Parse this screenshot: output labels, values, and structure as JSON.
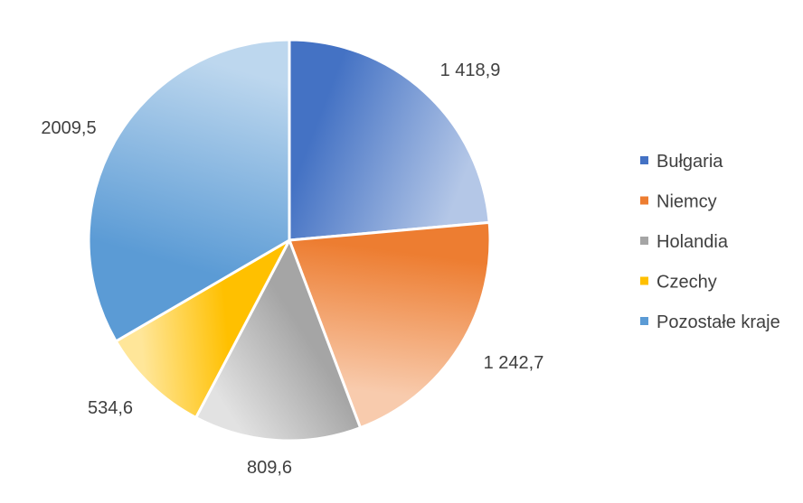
{
  "chart_data": {
    "type": "pie",
    "title": "",
    "legend_position": "right",
    "slices": [
      {
        "name": "Bułgaria",
        "value": 1418.9,
        "label": "1 418,9",
        "color": "#4472c4",
        "color_light": "#b4c7e7"
      },
      {
        "name": "Niemcy",
        "value": 1242.7,
        "label": "1 242,7",
        "color": "#ed7d31",
        "color_light": "#f8cbad"
      },
      {
        "name": "Holandia",
        "value": 809.6,
        "label": "809,6",
        "color": "#a5a5a5",
        "color_light": "#e2e2e2"
      },
      {
        "name": "Czechy",
        "value": 534.6,
        "label": "534,6",
        "color": "#ffc000",
        "color_light": "#ffe699"
      },
      {
        "name": "Pozostałe kraje",
        "value": 2009.5,
        "label": "2009,5",
        "color": "#5b9bd5",
        "color_light": "#bdd7ee"
      }
    ]
  }
}
